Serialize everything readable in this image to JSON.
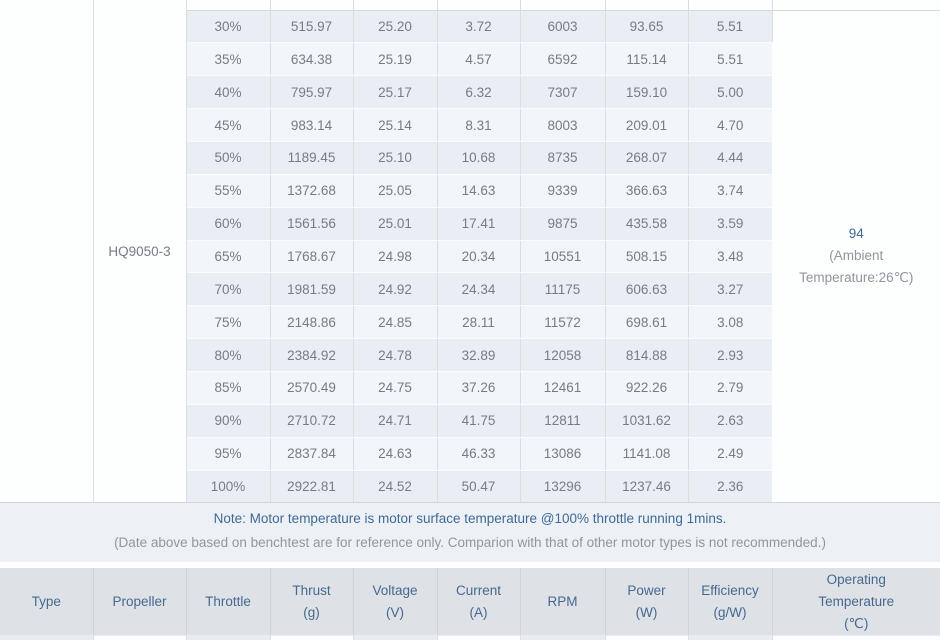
{
  "colors": {
    "header_bg": "#dee2e6",
    "header_text": "#46688f",
    "note_blue": "#3e6a97",
    "note_grey": "#90969e",
    "row_odd_bg": "#e9eef4",
    "row_even_bg": "#f2f5f9",
    "data_text": "#767c85",
    "border": "#d9dee3"
  },
  "spec_table": {
    "propeller": "HQ9050-3",
    "operating_temperature": {
      "value": "94",
      "ambient_line1": "(Ambient",
      "ambient_line2": "Temperature:26℃)"
    },
    "columns": [
      "throttle",
      "thrust",
      "voltage",
      "current",
      "rpm",
      "power",
      "efficiency"
    ],
    "rows": [
      [
        "30%",
        "515.97",
        "25.20",
        "3.72",
        "6003",
        "93.65",
        "5.51"
      ],
      [
        "35%",
        "634.38",
        "25.19",
        "4.57",
        "6592",
        "115.14",
        "5.51"
      ],
      [
        "40%",
        "795.97",
        "25.17",
        "6.32",
        "7307",
        "159.10",
        "5.00"
      ],
      [
        "45%",
        "983.14",
        "25.14",
        "8.31",
        "8003",
        "209.01",
        "4.70"
      ],
      [
        "50%",
        "1189.45",
        "25.10",
        "10.68",
        "8735",
        "268.07",
        "4.44"
      ],
      [
        "55%",
        "1372.68",
        "25.05",
        "14.63",
        "9339",
        "366.63",
        "3.74"
      ],
      [
        "60%",
        "1561.56",
        "25.01",
        "17.41",
        "9875",
        "435.58",
        "3.59"
      ],
      [
        "65%",
        "1768.67",
        "24.98",
        "20.34",
        "10551",
        "508.15",
        "3.48"
      ],
      [
        "70%",
        "1981.59",
        "24.92",
        "24.34",
        "11175",
        "606.63",
        "3.27"
      ],
      [
        "75%",
        "2148.86",
        "24.85",
        "28.11",
        "11572",
        "698.61",
        "3.08"
      ],
      [
        "80%",
        "2384.92",
        "24.78",
        "32.89",
        "12058",
        "814.88",
        "2.93"
      ],
      [
        "85%",
        "2570.49",
        "24.75",
        "37.26",
        "12461",
        "922.26",
        "2.79"
      ],
      [
        "90%",
        "2710.72",
        "24.71",
        "41.75",
        "12811",
        "1031.62",
        "2.63"
      ],
      [
        "95%",
        "2837.84",
        "24.63",
        "46.33",
        "13086",
        "1141.08",
        "2.49"
      ],
      [
        "100%",
        "2922.81",
        "24.52",
        "50.47",
        "13296",
        "1237.46",
        "2.36"
      ]
    ]
  },
  "note": {
    "line1": "Note: Motor temperature is motor surface temperature @100% throttle running 1mins.",
    "line2": "(Date above based on benchtest are for reference only. Comparion with that of other motor types is not recommended.)"
  },
  "header_row": [
    {
      "label": "Type"
    },
    {
      "label": "Propeller"
    },
    {
      "label": "Throttle"
    },
    {
      "label": "Thrust",
      "unit": "(g)"
    },
    {
      "label": "Voltage",
      "unit": "(V)"
    },
    {
      "label": "Current",
      "unit": "(A)"
    },
    {
      "label": "RPM"
    },
    {
      "label": "Power",
      "unit": "(W)"
    },
    {
      "label": "Efficiency",
      "unit": "(g/W)"
    },
    {
      "label": "Operating",
      "label2": "Temperature",
      "unit": "(℃)"
    }
  ]
}
